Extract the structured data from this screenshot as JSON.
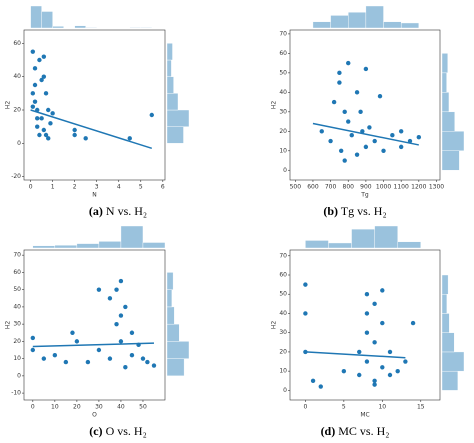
{
  "chart_data": [
    {
      "type": "scatter",
      "panel": "(a)",
      "caption": "N vs. H₂",
      "xlabel": "N",
      "ylabel": "H2",
      "color": "#1f77b4",
      "xlim": [
        -0.3,
        6.1
      ],
      "ylim": [
        -22,
        68
      ],
      "xticks": [
        0,
        1,
        2,
        3,
        4,
        5,
        6
      ],
      "yticks": [
        -20,
        0,
        20,
        40,
        60
      ],
      "x": [
        0.1,
        0.1,
        0.2,
        0.2,
        0.3,
        0.3,
        0.4,
        0.5,
        0.5,
        0.6,
        0.6,
        0.7,
        0.7,
        0.8,
        0.9,
        1.0,
        0.2,
        0.4,
        0.6,
        0.8,
        0.1,
        0.3,
        2.0,
        2.0,
        2.5,
        4.5,
        5.5
      ],
      "y": [
        55,
        30,
        45,
        25,
        20,
        10,
        50,
        38,
        15,
        52,
        8,
        30,
        5,
        20,
        12,
        18,
        35,
        5,
        40,
        3,
        22,
        15,
        8,
        5,
        3,
        3,
        17
      ],
      "trend": {
        "x": [
          0,
          5.5
        ],
        "y": [
          20,
          -3
        ]
      },
      "x_hist": {
        "bins": [
          0,
          0.5,
          1,
          1.5,
          2,
          2.5,
          3,
          3.5,
          4,
          4.5,
          5,
          5.5
        ],
        "counts": [
          40,
          30,
          3,
          0,
          4,
          1,
          0,
          0,
          0,
          1,
          1
        ]
      },
      "y_hist": {
        "bins": [
          0,
          10,
          20,
          30,
          40,
          50,
          60
        ],
        "counts": [
          30,
          40,
          20,
          12,
          8,
          10
        ]
      }
    },
    {
      "type": "scatter",
      "panel": "(b)",
      "caption": "Tg vs. H₂",
      "xlabel": "Tg",
      "ylabel": "H2",
      "color": "#1f77b4",
      "xlim": [
        470,
        1320
      ],
      "ylim": [
        -5,
        72
      ],
      "xticks": [
        500,
        600,
        700,
        800,
        900,
        1000,
        1100,
        1200,
        1300
      ],
      "yticks": [
        0,
        10,
        20,
        30,
        40,
        50,
        60,
        70
      ],
      "x": [
        650,
        700,
        720,
        750,
        760,
        780,
        800,
        800,
        820,
        850,
        850,
        870,
        880,
        900,
        900,
        920,
        950,
        980,
        1000,
        1050,
        1100,
        1100,
        1150,
        1200,
        750,
        780
      ],
      "y": [
        20,
        15,
        35,
        50,
        10,
        5,
        55,
        25,
        18,
        40,
        8,
        30,
        20,
        52,
        12,
        22,
        15,
        38,
        10,
        18,
        20,
        12,
        15,
        17,
        45,
        30
      ],
      "trend": {
        "x": [
          600,
          1200
        ],
        "y": [
          24,
          13
        ]
      },
      "x_hist": {
        "bins": [
          600,
          700,
          800,
          900,
          1000,
          1100,
          1200
        ],
        "counts": [
          10,
          20,
          25,
          35,
          10,
          8
        ]
      },
      "y_hist": {
        "bins": [
          0,
          10,
          20,
          30,
          40,
          50,
          60
        ],
        "counts": [
          30,
          38,
          22,
          12,
          8,
          10
        ]
      }
    },
    {
      "type": "scatter",
      "panel": "(c)",
      "caption": "O vs. H₂",
      "xlabel": "O",
      "ylabel": "H2",
      "color": "#1f77b4",
      "xlim": [
        -4,
        60
      ],
      "ylim": [
        -14,
        73
      ],
      "xticks": [
        0,
        10,
        20,
        30,
        40,
        50
      ],
      "yticks": [
        -10,
        0,
        10,
        20,
        30,
        40,
        50,
        60,
        70
      ],
      "x": [
        0,
        0,
        5,
        10,
        15,
        18,
        20,
        25,
        30,
        30,
        35,
        35,
        38,
        40,
        40,
        42,
        42,
        45,
        45,
        48,
        50,
        52,
        55,
        40,
        38
      ],
      "y": [
        22,
        15,
        10,
        12,
        8,
        25,
        20,
        8,
        50,
        15,
        45,
        10,
        30,
        55,
        20,
        40,
        5,
        25,
        12,
        18,
        10,
        8,
        6,
        35,
        50
      ],
      "trend": {
        "x": [
          0,
          55
        ],
        "y": [
          17,
          19
        ]
      },
      "x_hist": {
        "bins": [
          0,
          10,
          20,
          30,
          40,
          50,
          60
        ],
        "counts": [
          4,
          5,
          8,
          12,
          40,
          10
        ]
      },
      "y_hist": {
        "bins": [
          0,
          10,
          20,
          30,
          40,
          50,
          60
        ],
        "counts": [
          28,
          36,
          20,
          12,
          8,
          10
        ]
      }
    },
    {
      "type": "scatter",
      "panel": "(d)",
      "caption": "MC vs. H₂",
      "xlabel": "MC",
      "ylabel": "H2",
      "color": "#1f77b4",
      "xlim": [
        -2,
        17.5
      ],
      "ylim": [
        -5,
        73
      ],
      "xticks": [
        0,
        5,
        10,
        15
      ],
      "yticks": [
        0,
        10,
        20,
        30,
        40,
        50,
        60,
        70
      ],
      "x": [
        0,
        0,
        0,
        1,
        2,
        5,
        7,
        7,
        8,
        8,
        8,
        9,
        9,
        9,
        10,
        10,
        10,
        11,
        11,
        12,
        13,
        14,
        8,
        9
      ],
      "y": [
        55,
        40,
        20,
        5,
        2,
        10,
        20,
        8,
        50,
        30,
        15,
        45,
        25,
        5,
        52,
        35,
        12,
        20,
        8,
        10,
        15,
        35,
        40,
        3
      ],
      "trend": {
        "x": [
          0,
          13
        ],
        "y": [
          20,
          17
        ]
      },
      "x_hist": {
        "bins": [
          0,
          3,
          6,
          9,
          12,
          15
        ],
        "counts": [
          12,
          8,
          30,
          35,
          10
        ]
      },
      "y_hist": {
        "bins": [
          0,
          10,
          20,
          30,
          40,
          50,
          60
        ],
        "counts": [
          26,
          36,
          20,
          12,
          8,
          10
        ]
      }
    }
  ]
}
